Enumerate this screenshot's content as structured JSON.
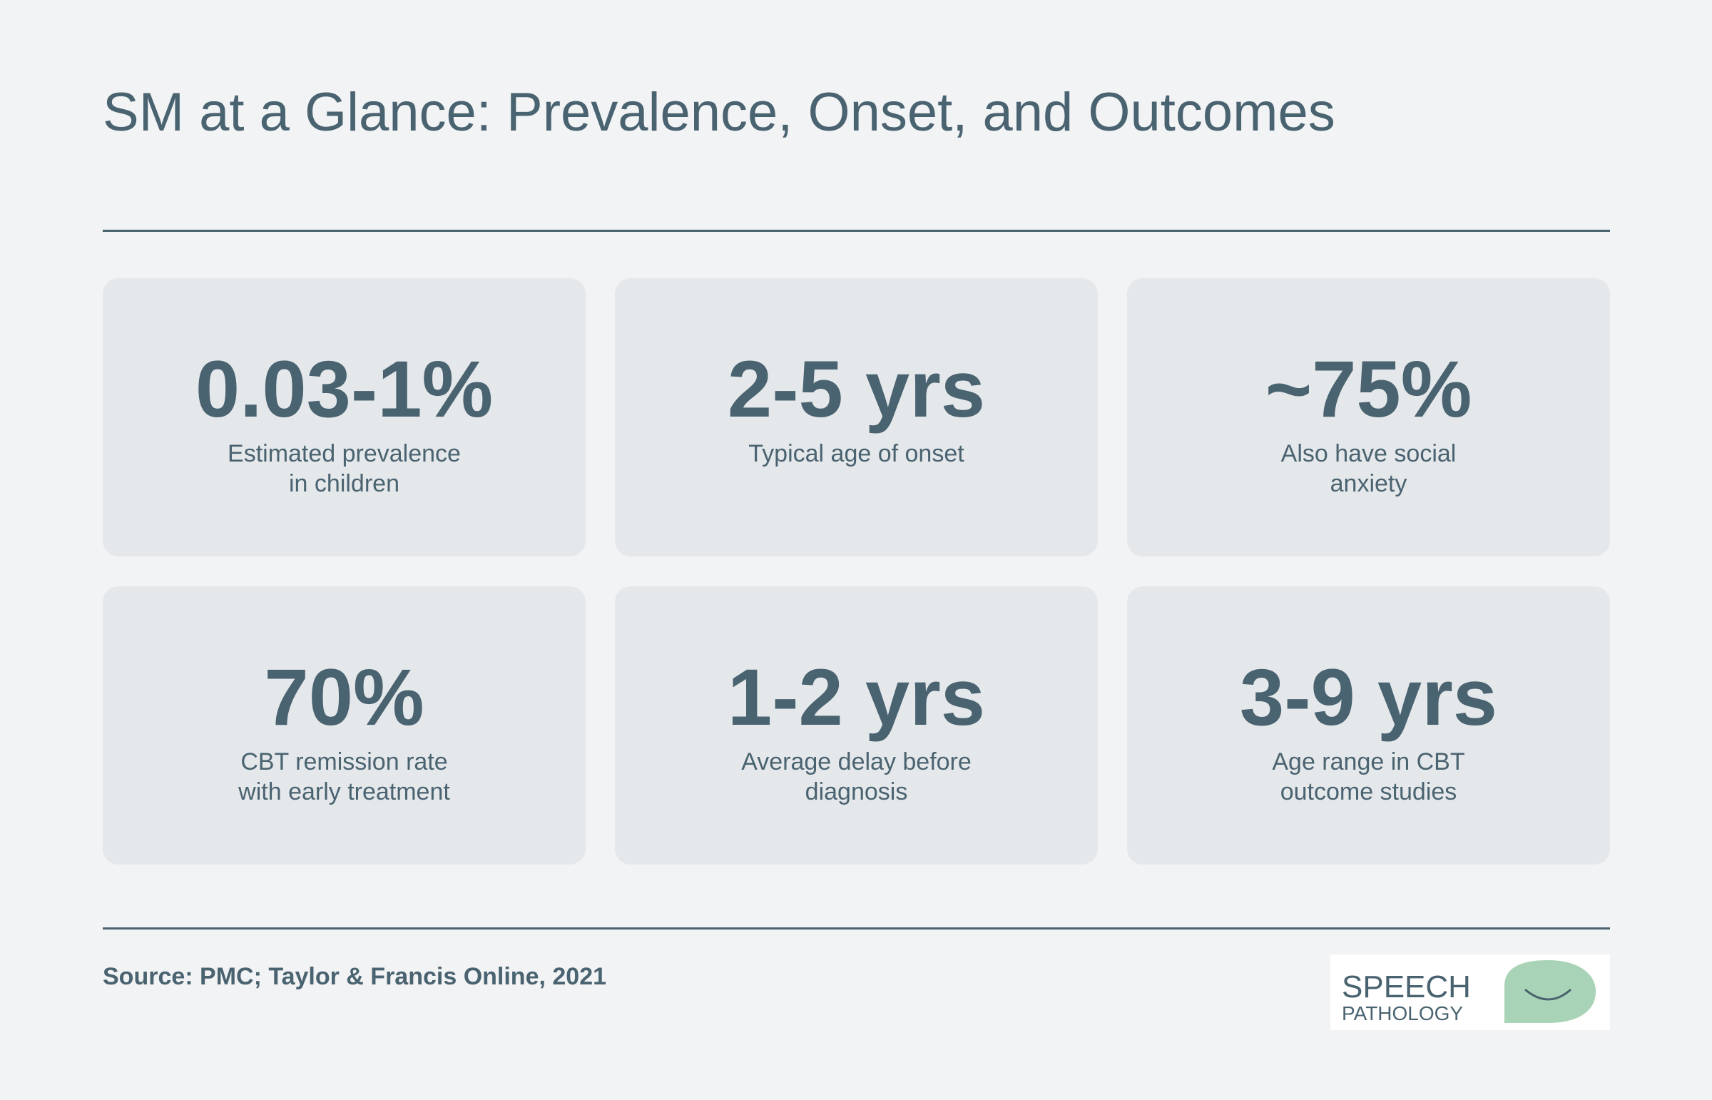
{
  "title": "SM at a Glance: Prevalence, Onset, and Outcomes",
  "stats": [
    {
      "value": "0.03-1%",
      "label_line1": "Estimated prevalence",
      "label_line2": "in children"
    },
    {
      "value": "2-5 yrs",
      "label_line1": "Typical age of onset",
      "label_line2": ""
    },
    {
      "value": "~75%",
      "label_line1": "Also have social",
      "label_line2": "anxiety"
    },
    {
      "value": "70%",
      "label_line1": "CBT remission rate",
      "label_line2": "with early treatment"
    },
    {
      "value": "1-2 yrs",
      "label_line1": "Average delay before",
      "label_line2": "diagnosis"
    },
    {
      "value": "3-9 yrs",
      "label_line1": "Age range in CBT",
      "label_line2": "outcome studies"
    }
  ],
  "source": "Source: PMC; Taylor & Francis Online, 2021",
  "logo": {
    "line1": "SPEECH",
    "line2": "PATHOLOGY",
    "icon": "speech-bubble-smile-icon"
  },
  "colors": {
    "background": "#f2f3f5",
    "card": "#e5e8eb",
    "text": "#4a6370",
    "logo_green": "#a9d3b6",
    "logo_text": "#4a6370"
  }
}
